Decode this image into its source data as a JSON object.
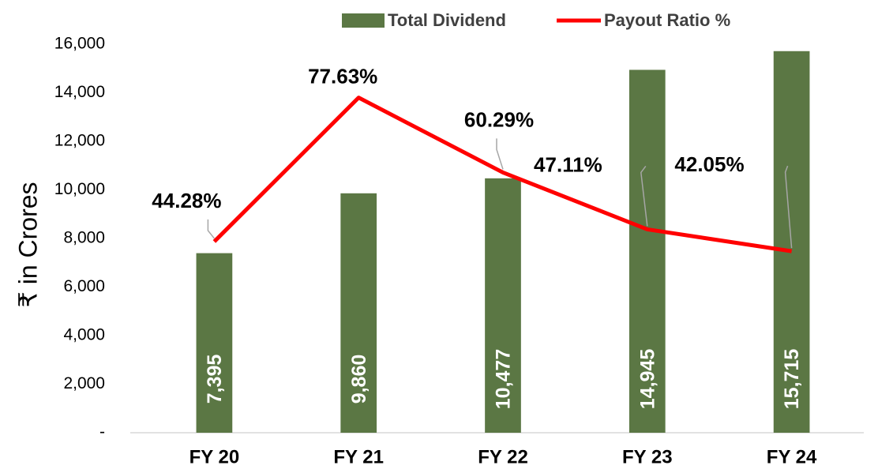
{
  "chart_data": {
    "type": "bar",
    "categories": [
      "FY 20",
      "FY 21",
      "FY 22",
      "FY 23",
      "FY 24"
    ],
    "series": [
      {
        "name": "Total Dividend",
        "type": "bar",
        "color": "#5b7744",
        "values": [
          7395,
          9860,
          10477,
          14945,
          15715
        ],
        "value_labels": [
          "7,395",
          "9,860",
          "10,477",
          "14,945",
          "15,715"
        ]
      },
      {
        "name": "Payout Ratio %",
        "type": "line",
        "axis": "y2",
        "color": "#ff0000",
        "values": [
          44.28,
          77.63,
          60.29,
          47.11,
          42.05
        ],
        "value_labels": [
          "44.28%",
          "77.63%",
          "60.29%",
          "47.11%",
          "42.05%"
        ]
      }
    ],
    "ylabel": "₹ in Crores",
    "ylim": [
      0,
      16000
    ],
    "yticks": [
      {
        "value": 0,
        "label": "-"
      },
      {
        "value": 2000,
        "label": "2,000"
      },
      {
        "value": 4000,
        "label": "4,000"
      },
      {
        "value": 6000,
        "label": "6,000"
      },
      {
        "value": 8000,
        "label": "8,000"
      },
      {
        "value": 10000,
        "label": "10,000"
      },
      {
        "value": 12000,
        "label": "12,000"
      },
      {
        "value": 14000,
        "label": "14,000"
      },
      {
        "value": 16000,
        "label": "16,000"
      }
    ],
    "y2lim": [
      0,
      90
    ],
    "legend": "top"
  }
}
